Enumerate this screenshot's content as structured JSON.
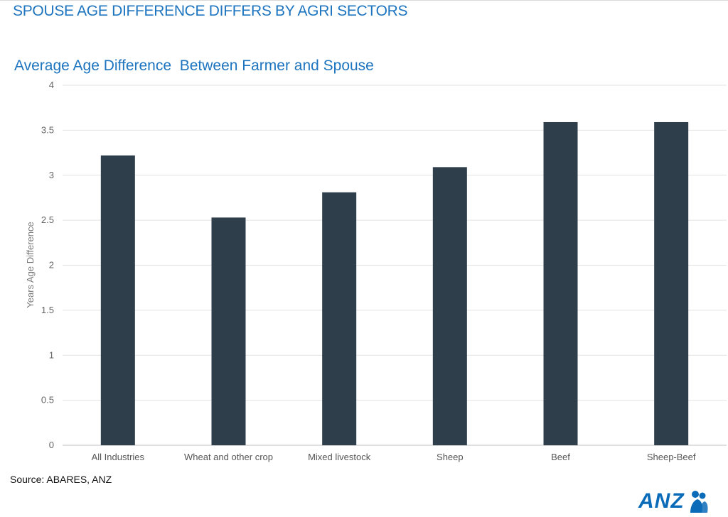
{
  "page": {
    "title": "SPOUSE AGE DIFFERENCE DIFFERS BY AGRI SECTORS",
    "source": "Source: ABARES, ANZ",
    "logo_text": "ANZ",
    "logo_icon": "anz-people-icon",
    "accent_color": "#1d74bf",
    "logo_color": "#0a6bb8"
  },
  "chart_data": {
    "type": "bar",
    "title": "Average Age Difference  Between Farmer and Spouse",
    "xlabel": "",
    "ylabel": "Years Age Difference",
    "categories": [
      "All Industries",
      "Wheat and other crop",
      "Mixed livestock",
      "Sheep",
      "Beef",
      "Sheep-Beef"
    ],
    "values": [
      3.22,
      2.53,
      2.81,
      3.09,
      3.59,
      3.59
    ],
    "ylim": [
      0,
      4
    ],
    "yticks": [
      "0",
      "0.5",
      "1",
      "1.5",
      "2",
      "2.5",
      "3",
      "3.5",
      "4"
    ],
    "grid": true,
    "legend": "none",
    "bar_color": "#2f3e4b"
  }
}
